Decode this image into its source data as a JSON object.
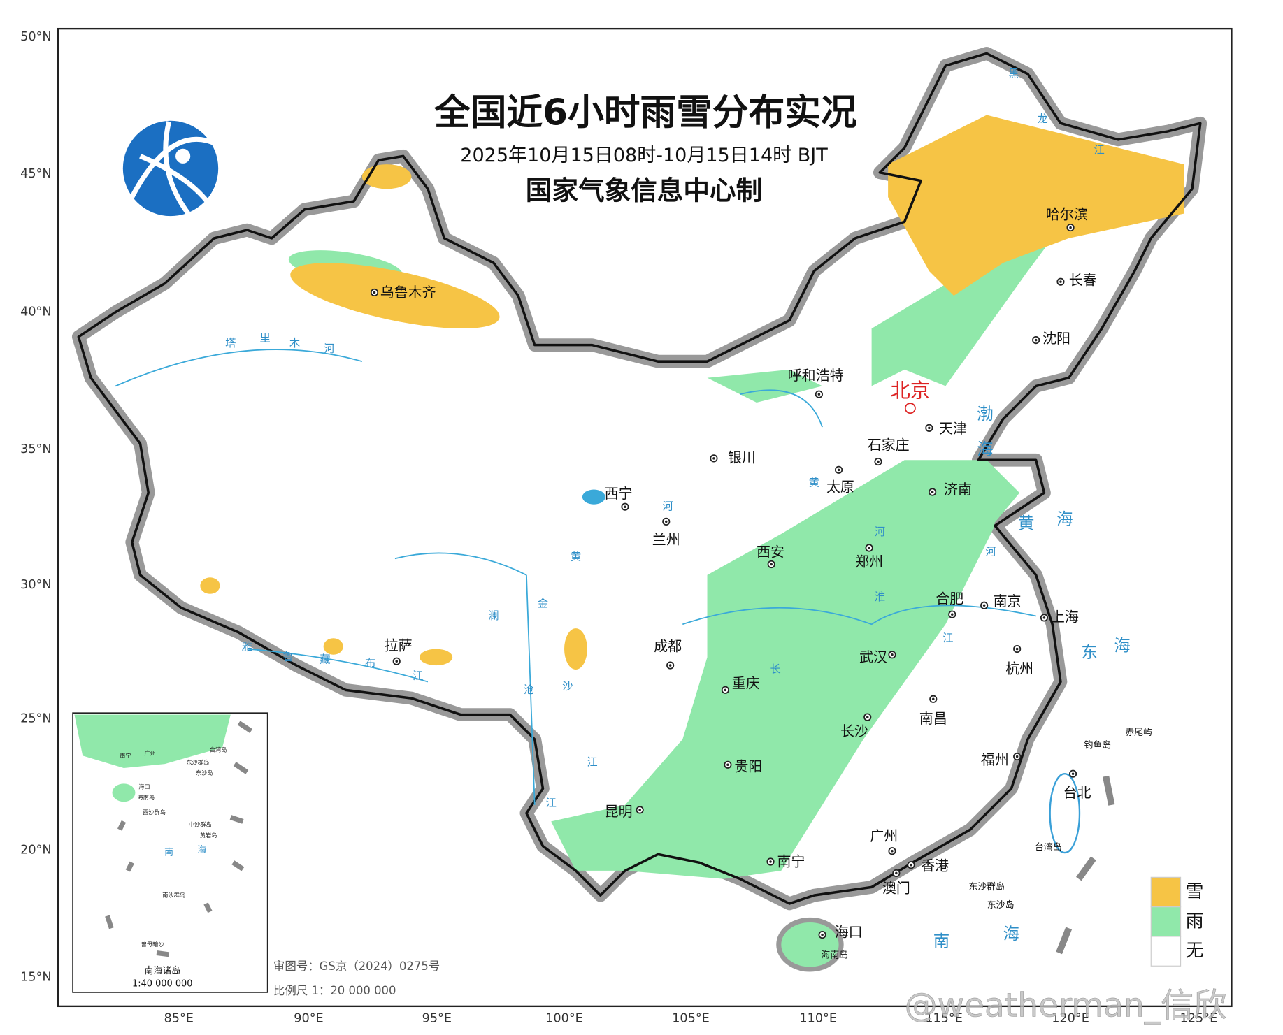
{
  "header": {
    "title": "全国近6小时雨雪分布实况",
    "subtitle": "2025年10月15日08时-10月15日14时 BJT",
    "producer": "国家气象信息中心制"
  },
  "lat_labels": [
    "50°N",
    "45°N",
    "40°N",
    "35°N",
    "30°N",
    "25°N",
    "20°N",
    "15°N"
  ],
  "lon_labels": [
    "85°E",
    "90°E",
    "95°E",
    "100°E",
    "105°E",
    "110°E",
    "115°E",
    "120°E",
    "125°E"
  ],
  "cities": [
    "乌鲁木齐",
    "拉萨",
    "西宁",
    "兰州",
    "银川",
    "呼和浩特",
    "北京",
    "天津",
    "石家庄",
    "太原",
    "济南",
    "郑州",
    "西安",
    "成都",
    "重庆",
    "武汉",
    "合肥",
    "南京",
    "上海",
    "杭州",
    "南昌",
    "长沙",
    "贵阳",
    "昆明",
    "南宁",
    "广州",
    "香港",
    "澳门",
    "福州",
    "台北",
    "海口",
    "哈尔滨",
    "长春",
    "沈阳"
  ],
  "seas": [
    [
      "渤",
      "海"
    ],
    [
      "黄",
      "海"
    ],
    [
      "东",
      "海"
    ],
    [
      "南",
      "海"
    ]
  ],
  "river_chars": [
    "塔",
    "里",
    "木",
    "河",
    "雅",
    "鲁",
    "藏",
    "布",
    "江",
    "黄",
    "河",
    "黄",
    "河",
    "长",
    "江",
    "淮",
    "澜",
    "沧",
    "江",
    "金",
    "沙",
    "江",
    "黑",
    "龙",
    "江",
    "河"
  ],
  "islands": [
    "钓鱼岛",
    "赤尾屿",
    "台湾岛",
    "海南岛",
    "东沙群岛",
    "东沙岛"
  ],
  "inset": {
    "title": "南海诸岛",
    "scale": "1:40 000 000",
    "labels": [
      "南宁",
      "广州",
      "台湾岛",
      "东沙群岛",
      "东沙岛",
      "海口",
      "海南岛",
      "西沙群岛",
      "中沙群岛",
      "黄岩岛",
      "南",
      "海",
      "南沙群岛",
      "曾母暗沙"
    ]
  },
  "legend": [
    {
      "label": "雪",
      "color": "#f6c445"
    },
    {
      "label": "雨",
      "color": "#90e8aa"
    },
    {
      "label": "无",
      "color": "#ffffff"
    }
  ],
  "footer": {
    "approval": "审图号：GS京（2024）0275号",
    "scale": "比例尺 1：20 000 000"
  },
  "watermark": "@weatherman_信欣"
}
